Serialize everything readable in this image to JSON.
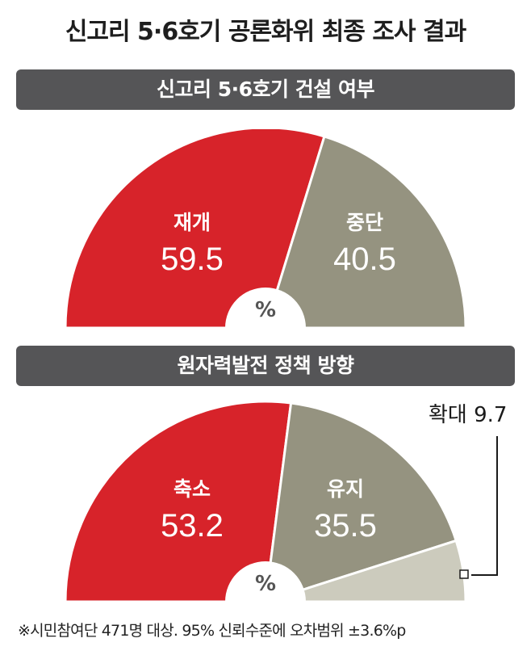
{
  "title": "신고리 5·6호기 공론화위 최종 조사 결과",
  "colors": {
    "red": "#d7232a",
    "olive": "#959380",
    "light": "#cccbbd",
    "banner": "#555557"
  },
  "chart_data": [
    {
      "type": "pie",
      "title": "신고리 5·6호기 건설 여부",
      "unit": "%",
      "slices": [
        {
          "label": "재개",
          "value": 59.5,
          "color": "#d7232a"
        },
        {
          "label": "중단",
          "value": 40.5,
          "color": "#959380"
        }
      ]
    },
    {
      "type": "pie",
      "title": "원자력발전 정책 방향",
      "unit": "%",
      "slices": [
        {
          "label": "축소",
          "value": 53.2,
          "color": "#d7232a"
        },
        {
          "label": "유지",
          "value": 35.5,
          "color": "#959380"
        },
        {
          "label": "확대",
          "value": 9.7,
          "color": "#cccbbd"
        }
      ]
    }
  ],
  "footnote": "※시민참여단 471명 대상. 95% 신뢰수준에 오차범위 ±3.6%p"
}
